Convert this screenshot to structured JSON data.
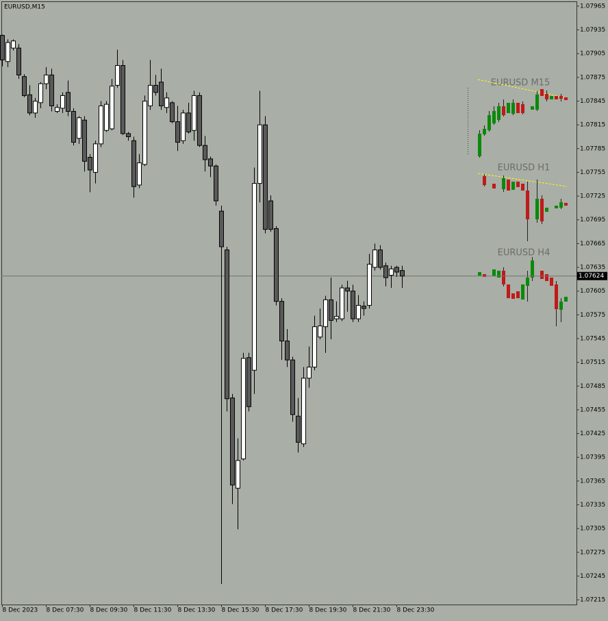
{
  "chart_data": {
    "type": "candlestick",
    "title": "EURUSD,M15",
    "categories": [
      "8 Dec 2023",
      null,
      null,
      null,
      null,
      null,
      null,
      null,
      "8 Dec 07:30",
      null,
      null,
      null,
      null,
      null,
      null,
      null,
      "8 Dec 09:30",
      null,
      null,
      null,
      null,
      null,
      null,
      null,
      "8 Dec 11:30",
      null,
      null,
      null,
      null,
      null,
      null,
      null,
      "8 Dec 13:30",
      null,
      null,
      null,
      null,
      null,
      null,
      null,
      "8 Dec 15:30",
      null,
      null,
      null,
      null,
      null,
      null,
      null,
      "8 Dec 17:30",
      null,
      null,
      null,
      null,
      null,
      null,
      null,
      "8 Dec 19:30",
      null,
      null,
      null,
      null,
      null,
      null,
      null,
      "8 Dec 21:30",
      null,
      null,
      null,
      null,
      null,
      null,
      null,
      "8 Dec 23:30",
      null
    ],
    "open": [
      1.07928,
      1.07895,
      1.07912,
      1.07912,
      1.07876,
      1.07853,
      1.0783,
      1.07843,
      1.07867,
      1.07878,
      1.07832,
      1.07836,
      1.07856,
      1.07832,
      1.07798,
      1.07821,
      1.07774,
      1.07755,
      1.07791,
      1.07808,
      1.0781,
      1.07865,
      1.0789,
      1.07804,
      1.07795,
      1.07739,
      1.07765,
      1.07839,
      1.07865,
      1.07869,
      1.07837,
      1.07843,
      1.07819,
      1.07795,
      1.0783,
      1.07808,
      1.07852,
      1.07789,
      1.07772,
      1.07763,
      1.07706,
      1.07657,
      1.0747,
      1.07356,
      1.07393,
      1.07521,
      1.07505,
      1.07741,
      1.07815,
      1.07719,
      1.07684,
      1.07592,
      1.07542,
      1.07518,
      1.07447,
      1.07412,
      1.07495,
      1.07509,
      1.07547,
      1.0756,
      1.07594,
      1.0757,
      1.0757,
      1.07609,
      1.07605,
      1.0757,
      1.07586,
      1.07587,
      1.07635,
      1.07657,
      1.07637,
      1.07625,
      1.07635,
      1.07631
    ],
    "high": [
      1.07929,
      1.07923,
      1.07923,
      1.07917,
      1.07879,
      1.07865,
      1.07849,
      1.07869,
      1.07888,
      1.07886,
      1.07841,
      1.07856,
      1.07871,
      1.07836,
      1.07826,
      1.07826,
      1.07778,
      1.07795,
      1.07845,
      1.07845,
      1.07873,
      1.0791,
      1.07897,
      1.07806,
      1.078,
      1.07778,
      1.07852,
      1.07897,
      1.07878,
      1.07886,
      1.07856,
      1.07845,
      1.07839,
      1.07834,
      1.07843,
      1.07858,
      1.07856,
      1.07801,
      1.07775,
      1.07765,
      1.07713,
      1.07661,
      1.07475,
      1.07419,
      1.07527,
      1.07527,
      1.07761,
      1.07858,
      1.07826,
      1.07726,
      1.07687,
      1.07596,
      1.07557,
      1.07522,
      1.0747,
      1.07509,
      1.07535,
      1.07574,
      1.07583,
      1.07599,
      1.07622,
      1.07592,
      1.07613,
      1.07618,
      1.07613,
      1.076,
      1.07592,
      1.07652,
      1.07665,
      1.07663,
      1.07641,
      1.07637,
      1.07637,
      1.07637
    ],
    "low": [
      1.07889,
      1.07888,
      1.07909,
      1.07873,
      1.0785,
      1.07827,
      1.07824,
      1.07836,
      1.0786,
      1.07832,
      1.0783,
      1.0783,
      1.07826,
      1.07789,
      1.07791,
      1.07756,
      1.0773,
      1.07741,
      1.07787,
      1.07806,
      1.07808,
      1.07862,
      1.07802,
      1.07795,
      1.07723,
      1.07735,
      1.07763,
      1.07834,
      1.07852,
      1.07834,
      1.0783,
      1.07817,
      1.07782,
      1.07791,
      1.07804,
      1.07795,
      1.07787,
      1.07756,
      1.07749,
      1.07713,
      1.07235,
      1.07453,
      1.07336,
      1.07304,
      1.07391,
      1.07453,
      1.07475,
      1.07717,
      1.07678,
      1.0768,
      1.07587,
      1.07518,
      1.07509,
      1.0744,
      1.07401,
      1.07408,
      1.07483,
      1.07505,
      1.07544,
      1.07527,
      1.07544,
      1.07566,
      1.07567,
      1.07579,
      1.07566,
      1.07566,
      1.07574,
      1.07583,
      1.07631,
      1.07632,
      1.07611,
      1.07609,
      1.07623,
      1.07609
    ],
    "close": [
      1.07897,
      1.07919,
      1.07921,
      1.07878,
      1.07852,
      1.0783,
      1.07845,
      1.07867,
      1.07878,
      1.07839,
      1.07837,
      1.07852,
      1.07832,
      1.07793,
      1.07824,
      1.07769,
      1.07758,
      1.07791,
      1.07839,
      1.07841,
      1.07864,
      1.0789,
      1.07804,
      1.078,
      1.07737,
      1.07767,
      1.07845,
      1.07865,
      1.07856,
      1.07839,
      1.07849,
      1.07819,
      1.07793,
      1.0783,
      1.07806,
      1.07852,
      1.07789,
      1.07771,
      1.07763,
      1.07719,
      1.07661,
      1.07469,
      1.0736,
      1.07391,
      1.0752,
      1.07459,
      1.07741,
      1.07815,
      1.07683,
      1.07683,
      1.07592,
      1.07542,
      1.07518,
      1.07449,
      1.07414,
      1.07495,
      1.07509,
      1.0756,
      1.07561,
      1.07594,
      1.07568,
      1.07573,
      1.07609,
      1.07605,
      1.0757,
      1.07587,
      1.07583,
      1.07639,
      1.07657,
      1.07635,
      1.07622,
      1.07633,
      1.07629,
      1.07624
    ],
    "up_color": "#ffffff",
    "down_color": "#5a5a5a",
    "ylim": [
      1.07209,
      1.07971
    ],
    "yticks": [
      1.07215,
      1.07245,
      1.07275,
      1.07305,
      1.07335,
      1.07365,
      1.07395,
      1.07425,
      1.07455,
      1.07485,
      1.07515,
      1.07545,
      1.07575,
      1.07605,
      1.07635,
      1.07665,
      1.07695,
      1.07725,
      1.07755,
      1.07785,
      1.07815,
      1.07845,
      1.07875,
      1.07905,
      1.07935,
      1.07965
    ],
    "current_price": 1.07624
  },
  "widgets": {
    "titles": [
      "EURUSD M15",
      "EURUSD H1",
      "EURUSD H4"
    ]
  }
}
